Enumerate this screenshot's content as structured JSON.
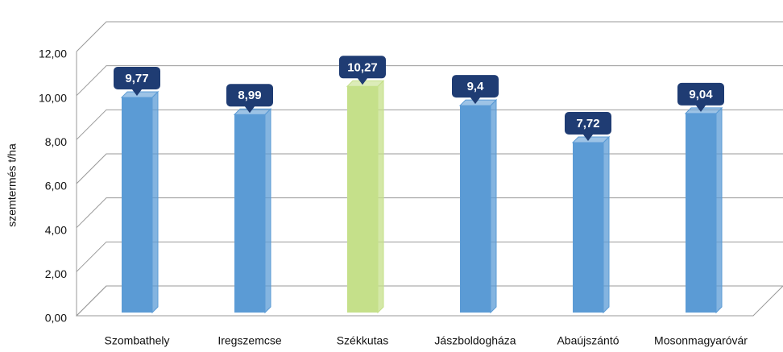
{
  "chart_data": {
    "type": "bar",
    "y_label": "szemtermés t/ha",
    "categories": [
      "Szombathely",
      "Iregszemcse",
      "Székkutas",
      "Jászboldogháza",
      "Abaújszántó",
      "Mosonmagyaróvár"
    ],
    "values": [
      9.77,
      8.99,
      10.27,
      9.4,
      7.72,
      9.04
    ],
    "value_labels": [
      "9,77",
      "8,99",
      "10,27",
      "9,4",
      "7,72",
      "9,04"
    ],
    "colors": [
      "#5b9bd5",
      "#5b9bd5",
      "#c5e08a",
      "#5b9bd5",
      "#5b9bd5",
      "#5b9bd5"
    ],
    "ylim": [
      0,
      12
    ],
    "yticks": [
      {
        "value": 0,
        "label": "0,00"
      },
      {
        "value": 2,
        "label": "2,00"
      },
      {
        "value": 4,
        "label": "4,00"
      },
      {
        "value": 6,
        "label": "6,00"
      },
      {
        "value": 8,
        "label": "8,00"
      },
      {
        "value": 10,
        "label": "10,00"
      },
      {
        "value": 12,
        "label": "12,00"
      }
    ],
    "grid": true
  }
}
